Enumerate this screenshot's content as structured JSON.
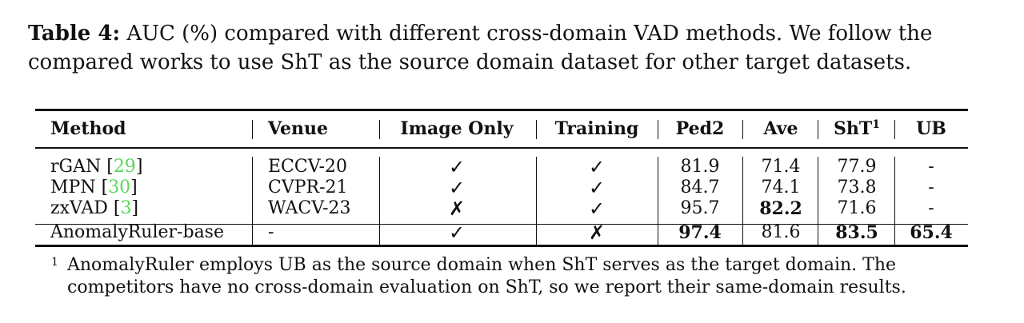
{
  "caption": {
    "label": "Table 4:",
    "line1": "AUC (%) compared with different cross-domain VAD methods. We follow the",
    "line2": "compared works to use ShT as the source domain dataset for other target datasets."
  },
  "table": {
    "headers": {
      "method": "Method",
      "venue": "Venue",
      "image_only": "Image Only",
      "training": "Training",
      "ped2": "Ped2",
      "ave": "Ave",
      "sht": "ShT",
      "sht_sup": "1",
      "ub": "UB"
    },
    "rows": [
      {
        "method": "rGAN",
        "ref": "29",
        "venue": "ECCV-20",
        "image_only": "✓",
        "training": "✓",
        "ped2": "81.9",
        "ave": "71.4",
        "sht": "77.9",
        "ub": "-"
      },
      {
        "method": "MPN",
        "ref": "30",
        "venue": "CVPR-21",
        "image_only": "✓",
        "training": "✓",
        "ped2": "84.7",
        "ave": "74.1",
        "sht": "73.8",
        "ub": "-"
      },
      {
        "method": "zxVAD",
        "ref": "3",
        "venue": "WACV-23",
        "image_only": "✗",
        "training": "✓",
        "ped2": "95.7",
        "ave": "82.2",
        "sht": "71.6",
        "ub": "-"
      },
      {
        "method": "AnomalyRuler-base",
        "venue": "-",
        "image_only": "✓",
        "training": "✗",
        "ped2": "97.4",
        "ave": "81.6",
        "sht": "83.5",
        "ub": "65.4"
      }
    ]
  },
  "footnote": {
    "mark": "1",
    "line1": "AnomalyRuler employs UB as the source domain when ShT serves as the target domain. The",
    "line2": "competitors have no cross-domain evaluation on ShT, so we report their same-domain results."
  },
  "colors": {
    "text": "#111111",
    "citation": "#58d858"
  }
}
